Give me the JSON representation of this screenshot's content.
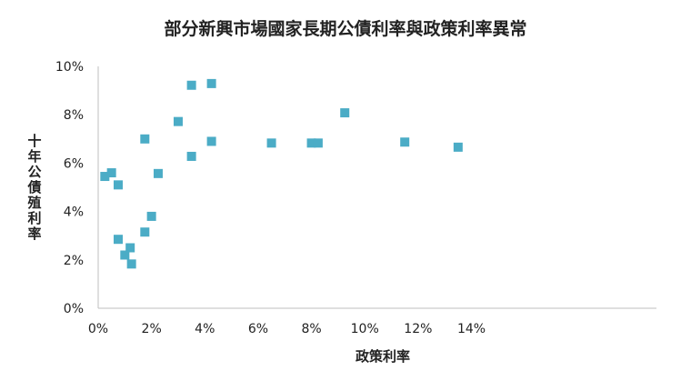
{
  "chart_data": {
    "type": "scatter",
    "title": "部分新興市場國家長期公債利率與政策利率異常",
    "xlabel": "政策利率",
    "ylabel": "十年公債殖利率",
    "xlim": [
      0,
      0.15
    ],
    "ylim": [
      0,
      0.1
    ],
    "x_ticks": [
      0,
      0.02,
      0.04,
      0.06,
      0.08,
      0.1,
      0.12,
      0.14
    ],
    "x_tick_labels": [
      "0%",
      "2%",
      "4%",
      "6%",
      "8%",
      "10%",
      "12%",
      "14%"
    ],
    "y_ticks": [
      0,
      0.02,
      0.04,
      0.06,
      0.08,
      0.1
    ],
    "y_tick_labels": [
      "0%",
      "2%",
      "4%",
      "6%",
      "8%",
      "10%"
    ],
    "grid": false,
    "marker": "square",
    "color": "#4bacc6",
    "points": [
      {
        "x": 0.0025,
        "y": 0.0545
      },
      {
        "x": 0.005,
        "y": 0.056
      },
      {
        "x": 0.0075,
        "y": 0.051
      },
      {
        "x": 0.0075,
        "y": 0.0285
      },
      {
        "x": 0.01,
        "y": 0.022
      },
      {
        "x": 0.012,
        "y": 0.025
      },
      {
        "x": 0.0125,
        "y": 0.0183
      },
      {
        "x": 0.0175,
        "y": 0.0315
      },
      {
        "x": 0.0175,
        "y": 0.07
      },
      {
        "x": 0.02,
        "y": 0.038
      },
      {
        "x": 0.0225,
        "y": 0.0557
      },
      {
        "x": 0.03,
        "y": 0.0772
      },
      {
        "x": 0.035,
        "y": 0.0628
      },
      {
        "x": 0.035,
        "y": 0.0922
      },
      {
        "x": 0.0425,
        "y": 0.0929
      },
      {
        "x": 0.0425,
        "y": 0.069
      },
      {
        "x": 0.065,
        "y": 0.0683
      },
      {
        "x": 0.08,
        "y": 0.0683
      },
      {
        "x": 0.0825,
        "y": 0.0683
      },
      {
        "x": 0.0925,
        "y": 0.0808
      },
      {
        "x": 0.115,
        "y": 0.0687
      },
      {
        "x": 0.135,
        "y": 0.0666
      }
    ]
  }
}
